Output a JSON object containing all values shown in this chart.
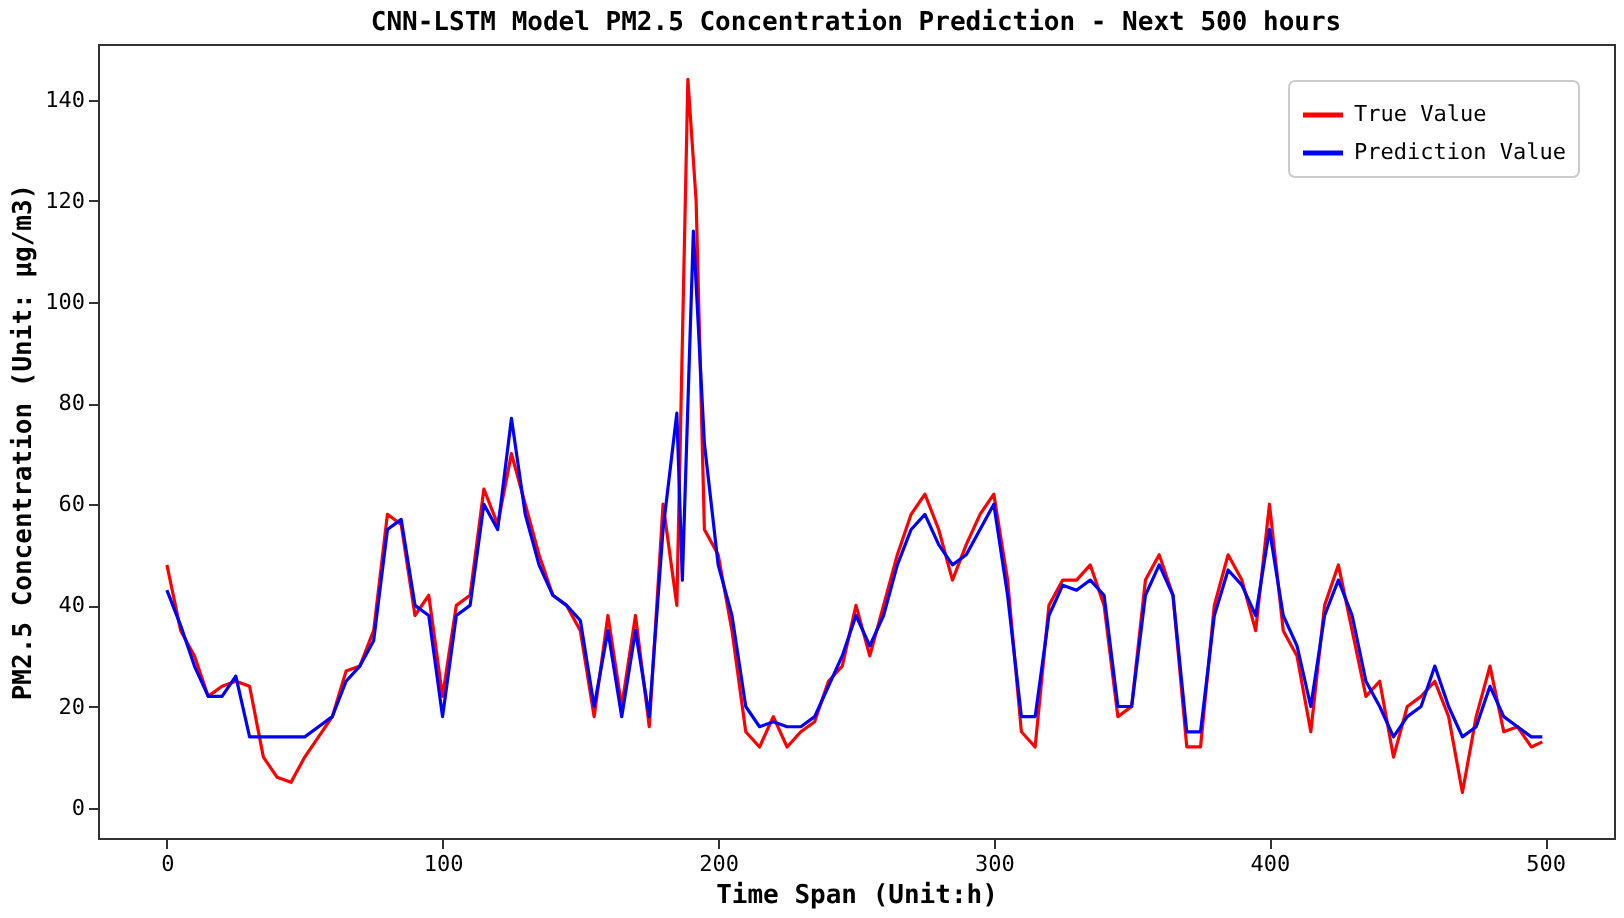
{
  "chart_data": {
    "type": "line",
    "title": "CNN-LSTM Model PM2.5 Concentration Prediction - Next 500 hours",
    "xlabel": "Time Span (Unit:h)",
    "ylabel": "PM2.5 Concentration (Unit: μg/m3)",
    "xlim": [
      -25,
      525
    ],
    "ylim": [
      -6,
      151
    ],
    "xticks": [
      0,
      100,
      200,
      300,
      400,
      500
    ],
    "yticks": [
      0,
      20,
      40,
      60,
      80,
      100,
      120,
      140
    ],
    "grid": false,
    "legend": "top right",
    "line_style": "solid",
    "marker": "none",
    "series": [
      {
        "name": "True Value",
        "color": "#ff0000",
        "x": [
          0,
          5,
          10,
          15,
          20,
          25,
          30,
          35,
          40,
          45,
          50,
          55,
          60,
          65,
          70,
          75,
          80,
          85,
          90,
          95,
          100,
          105,
          110,
          115,
          120,
          125,
          130,
          135,
          140,
          145,
          150,
          155,
          160,
          165,
          170,
          175,
          180,
          185,
          189,
          192,
          195,
          200,
          205,
          210,
          215,
          220,
          225,
          230,
          235,
          240,
          245,
          250,
          255,
          260,
          265,
          270,
          275,
          280,
          285,
          290,
          295,
          300,
          305,
          310,
          315,
          320,
          325,
          330,
          335,
          340,
          345,
          350,
          355,
          360,
          365,
          370,
          375,
          380,
          385,
          390,
          395,
          400,
          405,
          410,
          415,
          420,
          425,
          430,
          435,
          440,
          445,
          450,
          455,
          460,
          465,
          470,
          475,
          480,
          485,
          490,
          495,
          499
        ],
        "values": [
          48,
          35,
          30,
          22,
          24,
          25,
          24,
          10,
          6,
          5,
          10,
          14,
          18,
          27,
          28,
          35,
          58,
          56,
          38,
          42,
          22,
          40,
          42,
          63,
          56,
          70,
          60,
          50,
          42,
          40,
          35,
          18,
          38,
          20,
          38,
          16,
          60,
          40,
          144,
          120,
          55,
          50,
          35,
          15,
          12,
          18,
          12,
          15,
          17,
          25,
          28,
          40,
          30,
          40,
          50,
          58,
          62,
          55,
          45,
          52,
          58,
          62,
          45,
          15,
          12,
          40,
          45,
          45,
          48,
          40,
          18,
          20,
          45,
          50,
          42,
          12,
          12,
          40,
          50,
          45,
          35,
          60,
          35,
          30,
          15,
          40,
          48,
          35,
          22,
          25,
          10,
          20,
          22,
          25,
          18,
          3,
          18,
          28,
          15,
          16,
          12,
          13
        ]
      },
      {
        "name": "Prediction Value",
        "color": "#0000ff",
        "x": [
          0,
          5,
          10,
          15,
          20,
          25,
          30,
          35,
          40,
          45,
          50,
          55,
          60,
          65,
          70,
          75,
          80,
          85,
          90,
          95,
          100,
          105,
          110,
          115,
          120,
          125,
          130,
          135,
          140,
          145,
          150,
          155,
          160,
          165,
          170,
          175,
          180,
          185,
          187,
          191,
          195,
          200,
          205,
          210,
          215,
          220,
          225,
          230,
          235,
          240,
          245,
          250,
          255,
          260,
          265,
          270,
          275,
          280,
          285,
          290,
          295,
          300,
          305,
          310,
          315,
          320,
          325,
          330,
          335,
          340,
          345,
          350,
          355,
          360,
          365,
          370,
          375,
          380,
          385,
          390,
          395,
          400,
          405,
          410,
          415,
          420,
          425,
          430,
          435,
          440,
          445,
          450,
          455,
          460,
          465,
          470,
          475,
          480,
          485,
          490,
          495,
          499
        ],
        "values": [
          43,
          36,
          28,
          22,
          22,
          26,
          14,
          14,
          14,
          14,
          14,
          16,
          18,
          25,
          28,
          33,
          55,
          57,
          40,
          38,
          18,
          38,
          40,
          60,
          55,
          77,
          58,
          48,
          42,
          40,
          37,
          20,
          35,
          18,
          35,
          18,
          55,
          78,
          45,
          114,
          72,
          48,
          38,
          20,
          16,
          17,
          16,
          16,
          18,
          24,
          30,
          38,
          32,
          38,
          48,
          55,
          58,
          52,
          48,
          50,
          55,
          60,
          42,
          18,
          18,
          38,
          44,
          43,
          45,
          42,
          20,
          20,
          42,
          48,
          42,
          15,
          15,
          38,
          47,
          44,
          38,
          55,
          38,
          32,
          20,
          38,
          45,
          38,
          25,
          20,
          14,
          18,
          20,
          28,
          20,
          14,
          16,
          24,
          18,
          16,
          14,
          14
        ]
      }
    ]
  }
}
